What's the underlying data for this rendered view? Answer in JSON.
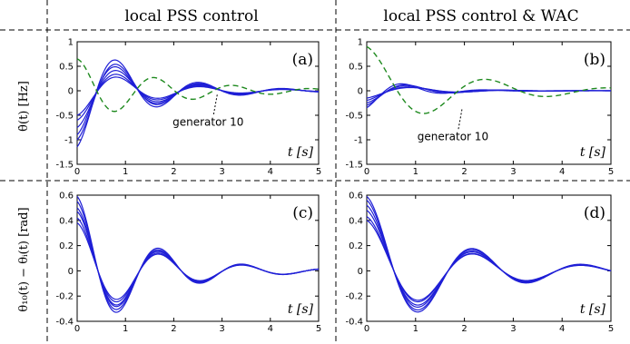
{
  "figure": {
    "column_titles": [
      "local PSS control",
      "local PSS control & WAC"
    ],
    "row_labels": [
      "θ̇(t) [Hz]",
      "θ₁₀(t) − θᵢ(t) [rad]"
    ]
  },
  "colors": {
    "generator_lines": "#1f1fd6",
    "generator_10": "#1f8a1f",
    "frame": "#000000"
  },
  "chart_data": [
    {
      "type": "line",
      "panel_label": "(a)",
      "xlabel": "t [s]",
      "x_ticks": [
        0,
        1,
        2,
        3,
        4,
        5
      ],
      "y_ticks": [
        1,
        0.5,
        0,
        -0.5,
        -1,
        -1.5
      ],
      "xlim": [
        0,
        5
      ],
      "ylim": [
        -1.5,
        1
      ],
      "annotation": {
        "text": "generator 10",
        "x": 2.9,
        "y": -0.08
      },
      "series": [
        {
          "style": "solid",
          "amp": -1.15,
          "freq": 0.58,
          "decay": 0.75,
          "phase": 0.1
        },
        {
          "style": "solid",
          "amp": -1.0,
          "freq": 0.58,
          "decay": 0.75,
          "phase": 0.05
        },
        {
          "style": "solid",
          "amp": -0.9,
          "freq": 0.58,
          "decay": 0.75,
          "phase": 0.08
        },
        {
          "style": "solid",
          "amp": -0.75,
          "freq": 0.58,
          "decay": 0.72,
          "phase": 0.04
        },
        {
          "style": "solid",
          "amp": -0.6,
          "freq": 0.58,
          "decay": 0.7,
          "phase": 0.03
        },
        {
          "style": "solid",
          "amp": -0.5,
          "freq": 0.58,
          "decay": 0.7,
          "phase": 0.02
        },
        {
          "style": "dashed",
          "amp": 0.65,
          "freq": 0.62,
          "decay": 0.55,
          "phase": 0.0
        }
      ]
    },
    {
      "type": "line",
      "panel_label": "(b)",
      "xlabel": "t [s]",
      "x_ticks": [
        0,
        1,
        2,
        3,
        4,
        5
      ],
      "y_ticks": [
        1,
        0.5,
        0,
        -0.5,
        -1,
        -1.5
      ],
      "xlim": [
        0,
        5
      ],
      "ylim": [
        -1.5,
        1
      ],
      "annotation": {
        "text": "generator 10",
        "x": 1.95,
        "y": -0.38
      },
      "series": [
        {
          "style": "solid",
          "amp": -0.35,
          "freq": 0.6,
          "decay": 1.2,
          "phase": 0.15
        },
        {
          "style": "solid",
          "amp": -0.3,
          "freq": 0.55,
          "decay": 1.1,
          "phase": 0.1
        },
        {
          "style": "solid",
          "amp": -0.25,
          "freq": 0.55,
          "decay": 1.0,
          "phase": 0.05
        },
        {
          "style": "solid",
          "amp": -0.2,
          "freq": 0.5,
          "decay": 1.0,
          "phase": 0.12
        },
        {
          "style": "solid",
          "amp": -0.15,
          "freq": 0.5,
          "decay": 0.9,
          "phase": 0.08
        },
        {
          "style": "dashed",
          "amp": 0.9,
          "freq": 0.4,
          "decay": 0.55,
          "phase": 0.0
        }
      ]
    },
    {
      "type": "line",
      "panel_label": "(c)",
      "xlabel": "t [s]",
      "x_ticks": [
        0,
        1,
        2,
        3,
        4,
        5
      ],
      "y_ticks": [
        0.6,
        0.4,
        0.2,
        0,
        -0.2,
        -0.4
      ],
      "xlim": [
        0,
        5
      ],
      "ylim": [
        -0.4,
        0.6
      ],
      "series": [
        {
          "style": "solid",
          "amp": 0.59,
          "freq": 0.58,
          "decay": 0.7,
          "phase": 0
        },
        {
          "style": "solid",
          "amp": 0.55,
          "freq": 0.58,
          "decay": 0.7,
          "phase": 0
        },
        {
          "style": "solid",
          "amp": 0.5,
          "freq": 0.58,
          "decay": 0.68,
          "phase": 0
        },
        {
          "style": "solid",
          "amp": 0.47,
          "freq": 0.58,
          "decay": 0.66,
          "phase": 0
        },
        {
          "style": "solid",
          "amp": 0.42,
          "freq": 0.58,
          "decay": 0.64,
          "phase": 0
        },
        {
          "style": "solid",
          "amp": 0.38,
          "freq": 0.58,
          "decay": 0.62,
          "phase": 0
        }
      ]
    },
    {
      "type": "line",
      "panel_label": "(d)",
      "xlabel": "t [s]",
      "x_ticks": [
        0,
        1,
        2,
        3,
        4,
        5
      ],
      "y_ticks": [
        0.6,
        0.4,
        0.2,
        0,
        -0.2,
        -0.4
      ],
      "xlim": [
        0,
        5
      ],
      "ylim": [
        -0.4,
        0.6
      ],
      "series": [
        {
          "style": "solid",
          "amp": 0.59,
          "freq": 0.45,
          "decay": 0.55,
          "phase": 0
        },
        {
          "style": "solid",
          "amp": 0.56,
          "freq": 0.45,
          "decay": 0.55,
          "phase": 0
        },
        {
          "style": "solid",
          "amp": 0.52,
          "freq": 0.45,
          "decay": 0.55,
          "phase": 0
        },
        {
          "style": "solid",
          "amp": 0.48,
          "freq": 0.45,
          "decay": 0.53,
          "phase": 0
        },
        {
          "style": "solid",
          "amp": 0.43,
          "freq": 0.45,
          "decay": 0.52,
          "phase": 0
        },
        {
          "style": "solid",
          "amp": 0.4,
          "freq": 0.45,
          "decay": 0.5,
          "phase": 0
        }
      ]
    }
  ]
}
